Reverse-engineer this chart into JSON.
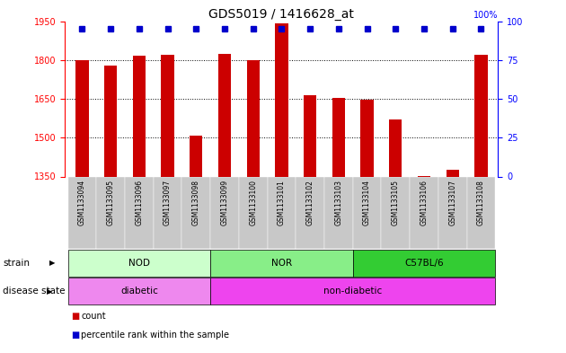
{
  "title": "GDS5019 / 1416628_at",
  "samples": [
    "GSM1133094",
    "GSM1133095",
    "GSM1133096",
    "GSM1133097",
    "GSM1133098",
    "GSM1133099",
    "GSM1133100",
    "GSM1133101",
    "GSM1133102",
    "GSM1133103",
    "GSM1133104",
    "GSM1133105",
    "GSM1133106",
    "GSM1133107",
    "GSM1133108"
  ],
  "counts": [
    1800,
    1780,
    1815,
    1820,
    1507,
    1822,
    1800,
    1940,
    1665,
    1655,
    1645,
    1572,
    1353,
    1375,
    1820
  ],
  "percentiles": [
    97,
    97,
    97,
    97,
    95,
    96,
    95,
    98,
    96,
    96,
    96,
    95,
    94,
    95,
    97
  ],
  "ylim_left": [
    1350,
    1950
  ],
  "ylim_right": [
    0,
    100
  ],
  "yticks_left": [
    1350,
    1500,
    1650,
    1800,
    1950
  ],
  "yticks_right": [
    0,
    25,
    50,
    75,
    100
  ],
  "bar_color": "#cc0000",
  "dot_color": "#0000cc",
  "strain_groups": [
    {
      "label": "NOD",
      "start": 0,
      "end": 4,
      "color": "#ccffcc"
    },
    {
      "label": "NOR",
      "start": 5,
      "end": 9,
      "color": "#88ee88"
    },
    {
      "label": "C57BL/6",
      "start": 10,
      "end": 14,
      "color": "#33cc33"
    }
  ],
  "disease_groups": [
    {
      "label": "diabetic",
      "start": 0,
      "end": 4,
      "color": "#ee88ee"
    },
    {
      "label": "non-diabetic",
      "start": 5,
      "end": 14,
      "color": "#ee44ee"
    }
  ],
  "strain_label": "strain",
  "disease_label": "disease state",
  "legend_count": "count",
  "legend_percentile": "percentile rank within the sample",
  "bar_width": 0.45,
  "tick_fontsize": 7,
  "title_fontsize": 10
}
